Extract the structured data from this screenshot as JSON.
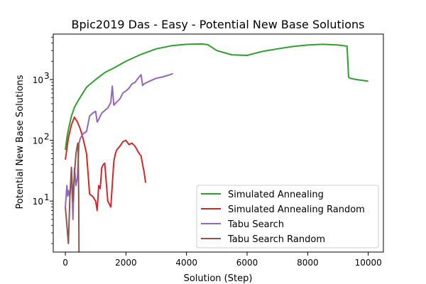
{
  "chart_data": {
    "type": "line",
    "title": "Bpic2019 Das - Easy - Potential New Base Solutions",
    "xlabel": "Solution (Step)",
    "ylabel": "Potential New Base Solutions",
    "xlim": [
      -400,
      10500
    ],
    "ylim": [
      1.45,
      5600
    ],
    "yscale": "log",
    "xticks": [
      0,
      2000,
      4000,
      6000,
      8000,
      10000
    ],
    "yticks": [
      {
        "value": 10,
        "label": "10",
        "exp": "1"
      },
      {
        "value": 100,
        "label": "10",
        "exp": "2"
      },
      {
        "value": 1000,
        "label": "10",
        "exp": "3"
      }
    ],
    "grid": false,
    "legend_position": "lower-right",
    "series": [
      {
        "name": "Simulated Annealing",
        "color": "#2ca02c",
        "x": [
          0,
          50,
          100,
          200,
          300,
          400,
          500,
          700,
          1000,
          1300,
          1600,
          2000,
          2500,
          3000,
          3500,
          4000,
          4500,
          4700,
          5000,
          5500,
          6000,
          6500,
          7000,
          7500,
          8000,
          8500,
          9000,
          9300,
          9350,
          9400,
          9600,
          9800,
          10000
        ],
        "y": [
          70,
          110,
          150,
          250,
          350,
          430,
          520,
          750,
          1000,
          1300,
          1550,
          2000,
          2600,
          3200,
          3600,
          3800,
          3850,
          3750,
          3000,
          2550,
          2500,
          2900,
          3200,
          3500,
          3700,
          3800,
          3700,
          3550,
          1100,
          1050,
          1000,
          970,
          940
        ]
      },
      {
        "name": "Simulated Annealing Random",
        "color": "#d62728",
        "x": [
          0,
          100,
          200,
          300,
          400,
          500,
          600,
          700,
          800,
          900,
          1000,
          1050,
          1100,
          1150,
          1200,
          1250,
          1300,
          1400,
          1500,
          1600,
          1650,
          1700,
          1800,
          1900,
          2000,
          2100,
          2200,
          2300,
          2400,
          2500,
          2550,
          2600,
          2650
        ],
        "y": [
          48,
          110,
          180,
          240,
          200,
          150,
          100,
          60,
          13,
          12,
          10,
          7,
          18,
          16,
          35,
          40,
          42,
          10,
          8,
          45,
          60,
          70,
          80,
          95,
          100,
          85,
          90,
          80,
          65,
          55,
          40,
          30,
          20
        ]
      },
      {
        "name": "Tabu Search",
        "color": "#9467bd",
        "x": [
          0,
          50,
          80,
          100,
          150,
          200,
          250,
          300,
          350,
          400,
          450,
          500,
          600,
          700,
          800,
          900,
          1000,
          1050,
          1100,
          1200,
          1300,
          1400,
          1500,
          1550,
          1600,
          1700,
          1800,
          1900,
          2000,
          2100,
          2200,
          2300,
          2400,
          2500,
          2550,
          2600,
          2800,
          3000,
          3200,
          3400,
          3550
        ],
        "y": [
          8,
          18,
          12,
          15,
          12,
          30,
          5,
          35,
          18,
          25,
          90,
          110,
          130,
          140,
          250,
          280,
          300,
          200,
          220,
          280,
          310,
          340,
          420,
          780,
          380,
          430,
          480,
          600,
          650,
          720,
          850,
          900,
          1050,
          1200,
          800,
          850,
          950,
          1050,
          1100,
          1180,
          1250
        ]
      },
      {
        "name": "Tabu Search Random",
        "color": "#8c564b",
        "x": [
          0,
          50,
          100,
          150,
          200,
          250,
          300,
          350,
          400,
          420,
          440,
          450,
          460
        ],
        "y": [
          8,
          4,
          2,
          12,
          36,
          10,
          28,
          60,
          86,
          90,
          12,
          1.45,
          1.45
        ]
      }
    ]
  }
}
